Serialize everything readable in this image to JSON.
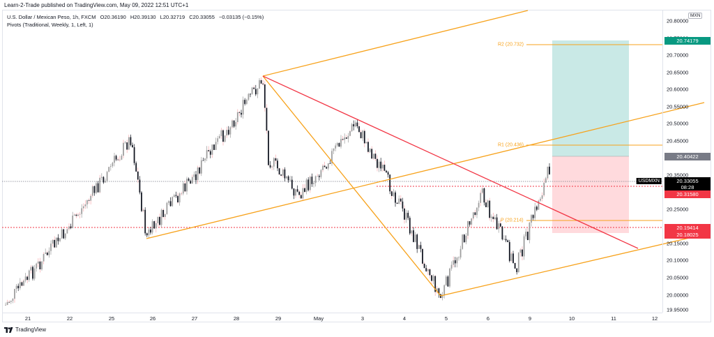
{
  "publisher_line": "Learn-2-Trade published on TradingView.com, May 09, 2022 12:51 UTC+1",
  "legend": {
    "symbol_line": "U.S. Dollar / Mexican Peso, 1h, FXCM",
    "open": "O20.36190",
    "high": "H20.39130",
    "low": "L20.32719",
    "close": "C20.33055",
    "change": "−0.03135 (−0.15%)",
    "indicator": "Pivots (Traditional, Weekly, 1, Left, 1)"
  },
  "price_axis": {
    "currency": "MXN",
    "ticks": [
      "20.80000",
      "20.75000",
      "20.70000",
      "20.65000",
      "20.60000",
      "20.55000",
      "20.50000",
      "20.45000",
      "20.40000",
      "20.35000",
      "20.30000",
      "20.25000",
      "20.20000",
      "20.15000",
      "20.10000",
      "20.05000",
      "20.00000",
      "19.95000"
    ],
    "badges": {
      "target": "20.74179",
      "entry": "20.40422",
      "last_price": "20.33055",
      "countdown": "08:28",
      "red_line": "20.31580",
      "stop_1": "20.19414",
      "stop_2": "20.18025"
    },
    "symbol_badge": "USDMXN"
  },
  "time_axis": {
    "ticks": [
      "21",
      "22",
      "25",
      "26",
      "27",
      "28",
      "29",
      "May",
      "3",
      "4",
      "5",
      "6",
      "9",
      "10",
      "11",
      "12"
    ]
  },
  "pivots": {
    "r2": "R2 (20.732)",
    "r1": "R1 (20.436)",
    "p": "P (20.214)"
  },
  "colors": {
    "trendline_orange": "#f7a21b",
    "trendline_red": "#f23645",
    "profit_zone": "#b2dfdb",
    "loss_zone": "#ffcdd2",
    "badge_teal": "#089981",
    "badge_red": "#f23645",
    "badge_gray": "#787b86",
    "candle_up": "#9e9e9e",
    "candle_down": "#131722"
  },
  "footer": {
    "brand": "TradingView"
  },
  "chart_data": {
    "type": "candlestick",
    "title": "U.S. Dollar / Mexican Peso, 1h, FXCM",
    "symbol": "USDMXN",
    "ylabel": "MXN",
    "ylim": [
      19.95,
      20.8
    ],
    "x_ticks": [
      "21",
      "22",
      "25",
      "26",
      "27",
      "28",
      "29",
      "May",
      "3",
      "4",
      "5",
      "6",
      "9",
      "10",
      "11",
      "12"
    ],
    "approx_path": [
      {
        "x": "21",
        "price": 19.97
      },
      {
        "x": "22",
        "price": 20.2
      },
      {
        "x": "25",
        "price": 20.46
      },
      {
        "x": "25.8",
        "price": 20.17
      },
      {
        "x": "27",
        "price": 20.35
      },
      {
        "x": "28.6",
        "price": 20.63
      },
      {
        "x": "29",
        "price": 20.4
      },
      {
        "x": "29.8",
        "price": 20.29
      },
      {
        "x": "3",
        "price": 20.5
      },
      {
        "x": "4",
        "price": 20.28
      },
      {
        "x": "5",
        "price": 19.99
      },
      {
        "x": "6",
        "price": 20.3
      },
      {
        "x": "6.6",
        "price": 20.08
      },
      {
        "x": "9.5",
        "price": 20.38
      }
    ],
    "ohlc_last": {
      "open": 20.3619,
      "high": 20.3913,
      "low": 20.32719,
      "close": 20.33055,
      "change": -0.03135,
      "change_pct": -0.15
    },
    "levels": {
      "R2": 20.732,
      "R1": 20.436,
      "P": 20.214,
      "long_position": {
        "entry": 20.40422,
        "target": 20.74179,
        "stop": 20.18025
      },
      "horizontal_lines": [
        20.33055,
        20.3158,
        20.19414
      ]
    },
    "trendlines": [
      {
        "color": "orange",
        "from": {
          "x": "28.6",
          "price": 20.63
        },
        "to": {
          "x": "10.7",
          "price": 20.83
        }
      },
      {
        "color": "orange",
        "from": {
          "x": "25.8",
          "price": 20.17
        },
        "to": {
          "x": "12",
          "price": 20.56
        }
      },
      {
        "color": "orange",
        "from": {
          "x": "28.6",
          "price": 20.63
        },
        "to": {
          "x": "4.9",
          "price": 19.99
        }
      },
      {
        "color": "orange",
        "from": {
          "x": "4.9",
          "price": 19.99
        },
        "to": {
          "x": "12",
          "price": 20.18
        }
      },
      {
        "color": "red",
        "from": {
          "x": "28.6",
          "price": 20.63
        },
        "to": {
          "x": "11.5",
          "price": 20.13
        }
      }
    ],
    "grid": false
  }
}
